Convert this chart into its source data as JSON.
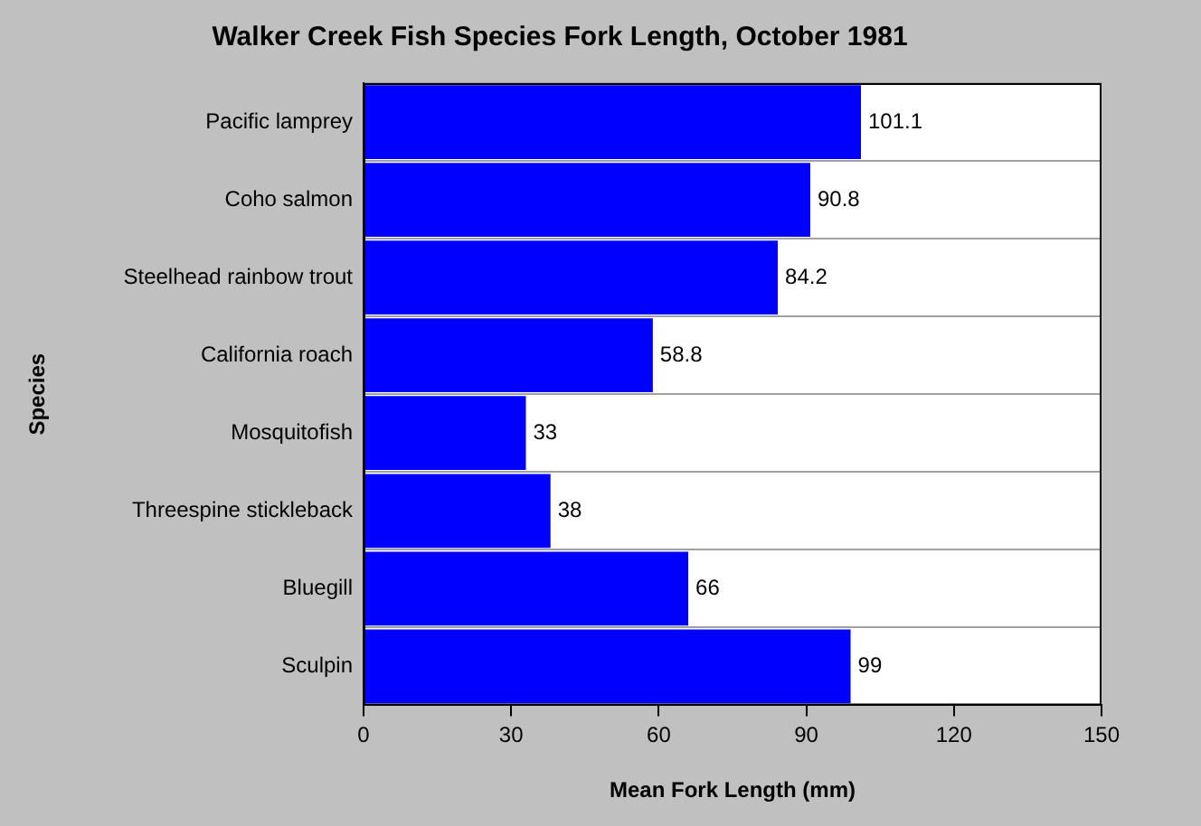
{
  "chart_data": {
    "type": "bar",
    "orientation": "horizontal",
    "title": "Walker Creek Fish Species Fork Length, October 1981",
    "xlabel": "Mean Fork Length (mm)",
    "ylabel": "Species",
    "categories": [
      "Pacific lamprey",
      "Coho salmon",
      "Steelhead rainbow trout",
      "California roach",
      "Mosquitofish",
      "Threespine stickleback",
      "Bluegill",
      "Sculpin"
    ],
    "values": [
      101.1,
      90.8,
      84.2,
      58.8,
      33,
      38,
      66,
      99
    ],
    "color": "#0000ff",
    "xlim": [
      0,
      150
    ],
    "xticks": [
      0,
      30,
      60,
      90,
      120,
      150
    ],
    "grid": "y",
    "data_labels": true,
    "legend": false
  }
}
